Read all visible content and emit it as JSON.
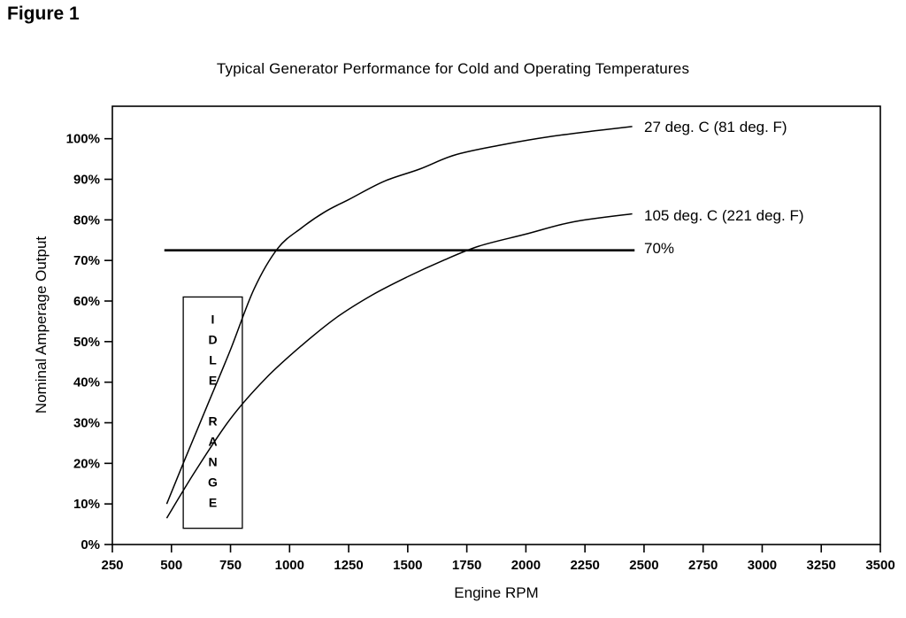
{
  "figure": {
    "label": "Figure 1"
  },
  "chart_data": {
    "type": "line",
    "title": "Typical Generator Performance for Cold and Operating Temperatures",
    "xlabel": "Engine RPM",
    "ylabel": "Nominal Amperage Output",
    "xlim": [
      250,
      3500
    ],
    "ylim": [
      0,
      108
    ],
    "x_ticks": [
      250,
      500,
      750,
      1000,
      1250,
      1500,
      1750,
      2000,
      2250,
      2500,
      2750,
      3000,
      3250,
      3500
    ],
    "y_ticks": [
      0,
      10,
      20,
      30,
      40,
      50,
      60,
      70,
      80,
      90,
      100
    ],
    "y_tick_suffix": "%",
    "x_tick_suffix": "",
    "grid": false,
    "legend_position": "inline-right-of-curves",
    "line_color": "#000000",
    "series": [
      {
        "name": "27 deg. C (81 deg. F)",
        "x": [
          480,
          550,
          650,
          750,
          850,
          950,
          1050,
          1150,
          1250,
          1400,
          1550,
          1700,
          1900,
          2100,
          2300,
          2450
        ],
        "y": [
          10,
          20,
          34,
          48,
          63,
          73,
          78,
          82,
          85,
          89.5,
          92.5,
          96,
          98.5,
          100.5,
          102,
          103
        ]
      },
      {
        "name": "105 deg. C (221 deg. F)",
        "x": [
          480,
          600,
          750,
          900,
          1050,
          1200,
          1350,
          1500,
          1650,
          1800,
          2000,
          2200,
          2450
        ],
        "y": [
          6.5,
          18,
          31,
          41,
          49,
          56,
          61.5,
          66,
          70,
          73.5,
          76.5,
          79.5,
          81.5
        ]
      }
    ],
    "reference_line": {
      "label": "70%",
      "y": 72.5,
      "x_start": 470,
      "x_end": 2460
    },
    "idle_range_box": {
      "label": "IDLE RANGE",
      "x_start": 550,
      "x_end": 800,
      "y_start": 4,
      "y_end": 61
    }
  }
}
